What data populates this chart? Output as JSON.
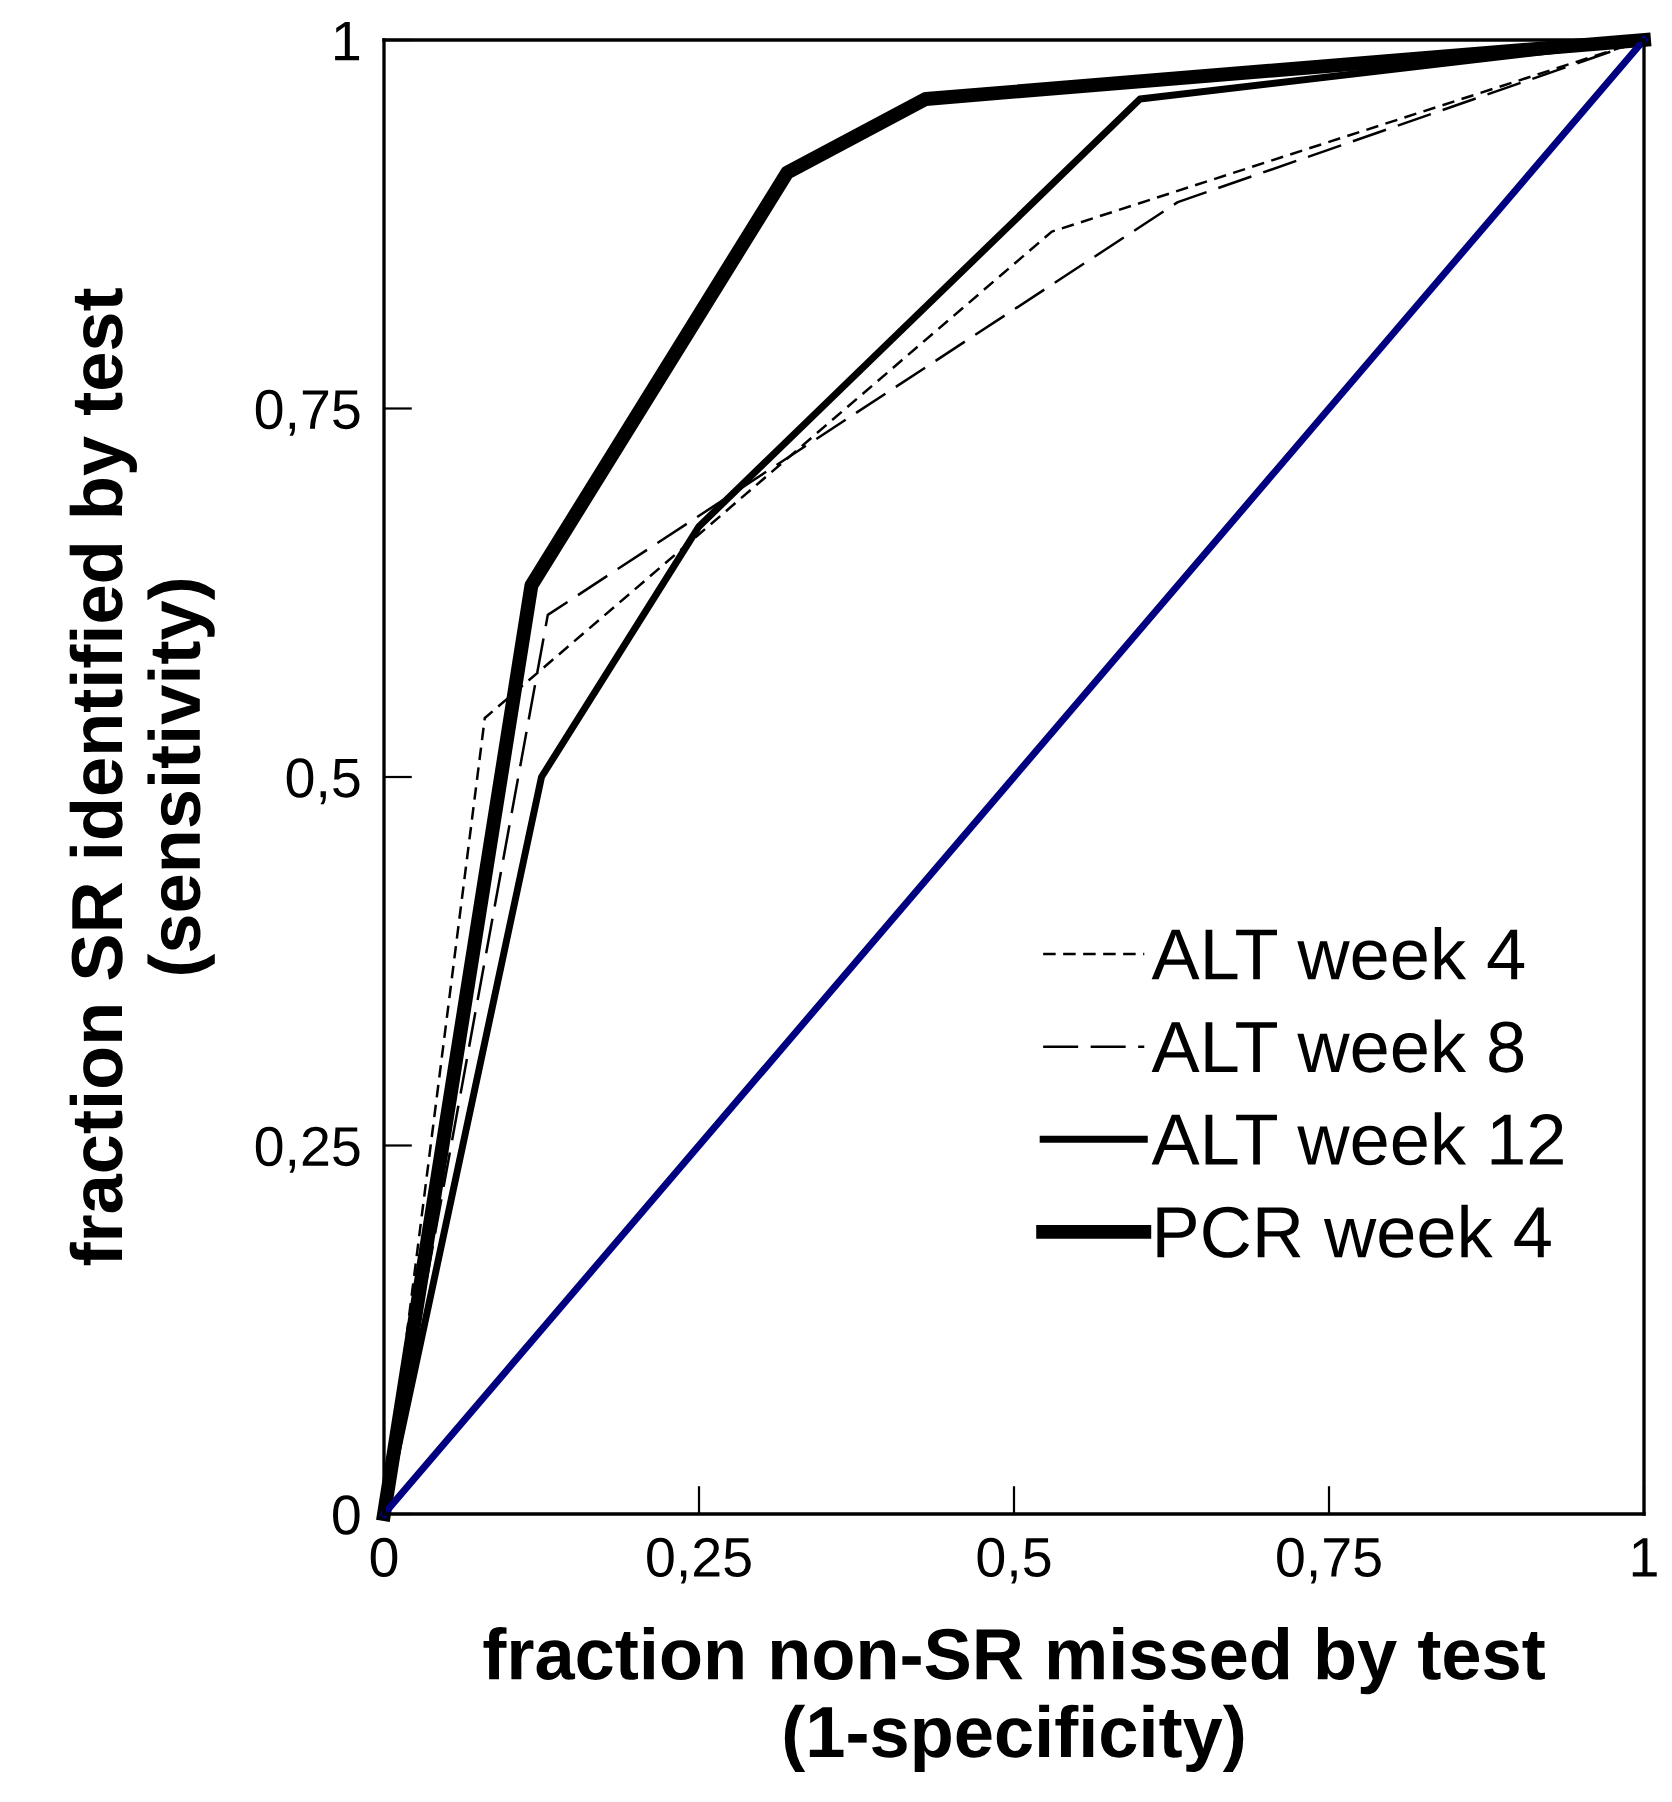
{
  "chart_data": {
    "type": "line",
    "xlabel": "fraction non-SR missed by test\n(1-specificity)",
    "ylabel": "fraction SR identified by test\n(sensitivity)",
    "series": [
      {
        "name": "ALT week 4",
        "color": "#000000",
        "line_style": "dashed",
        "x": [
          0,
          0.08,
          0.53,
          1
        ],
        "values": [
          0,
          0.54,
          0.87,
          1
        ]
      },
      {
        "name": "ALT week 8",
        "color": "#000000",
        "line_style": "dashed",
        "x": [
          0,
          0.13,
          0.63,
          1
        ],
        "values": [
          0,
          0.61,
          0.89,
          1
        ]
      },
      {
        "name": "ALT week 12",
        "color": "#000000",
        "line_style": "solid",
        "x": [
          0,
          0.125,
          0.25,
          0.6,
          1
        ],
        "values": [
          0,
          0.5,
          0.67,
          0.96,
          1
        ]
      },
      {
        "name": "PCR week 4",
        "color": "#000000",
        "line_style": "solid",
        "x": [
          0,
          0.117,
          0.32,
          0.43,
          1
        ],
        "values": [
          0,
          0.63,
          0.91,
          0.96,
          1
        ]
      },
      {
        "color": "#000080",
        "line_style": "solid",
        "x": [
          0,
          1
        ],
        "values": [
          0,
          1
        ]
      }
    ],
    "xlim": [
      0,
      1
    ],
    "ylim": [
      0,
      1
    ],
    "xticks": [
      0,
      {
        "value": 0.25,
        "label": "0,25"
      },
      {
        "value": 0.5,
        "label": "0,5"
      },
      {
        "value": 0.75,
        "label": "0,75"
      },
      1
    ],
    "yticks": [
      0,
      {
        "value": 0.25,
        "label": "0,25"
      },
      {
        "value": 0.5,
        "label": "0,5"
      },
      {
        "value": 0.75,
        "label": "0,75"
      },
      1
    ],
    "grid": false,
    "legend": "lower right",
    "marker": "none"
  }
}
